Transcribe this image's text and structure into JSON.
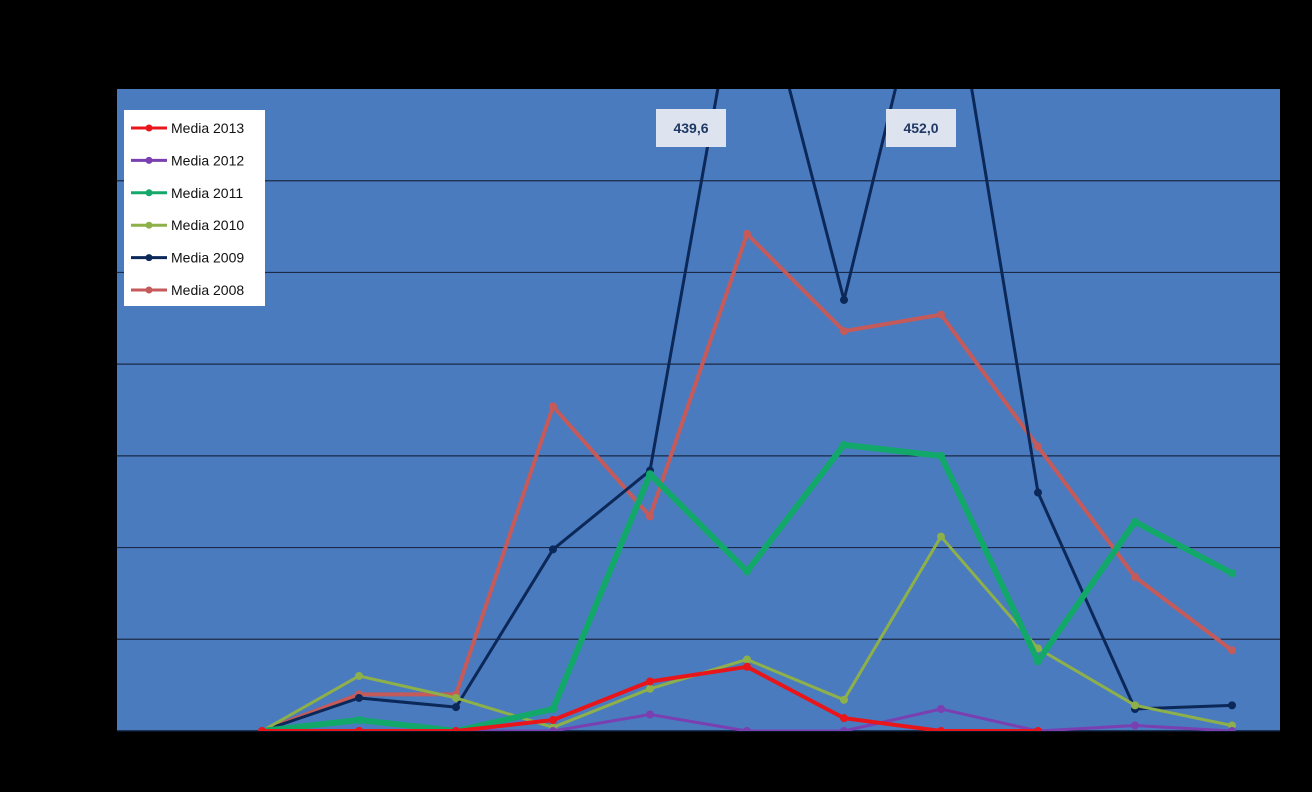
{
  "chart_data": {
    "type": "line",
    "title": "",
    "xlabel": "",
    "ylabel": "",
    "ylim": [
      0,
      350
    ],
    "grid": true,
    "legend_position": "top-left",
    "plot_background": "#4a7bbf",
    "gridline_color": "#1a2a48",
    "x": [
      1,
      2,
      3,
      4,
      5,
      6,
      7,
      8,
      9,
      10,
      11
    ],
    "series": [
      {
        "name": "Media 2013",
        "color": "#e8161b",
        "values": [
          0,
          0,
          0,
          6,
          27,
          35,
          7,
          0,
          0,
          null,
          null
        ]
      },
      {
        "name": "Media 2012",
        "color": "#7a3fb0",
        "values": [
          0,
          0,
          0,
          0,
          9,
          0,
          0,
          12,
          0,
          3,
          0
        ]
      },
      {
        "name": "Media 2011",
        "color": "#12a86a",
        "values": [
          0,
          6,
          0,
          12,
          140,
          87,
          156,
          150,
          38,
          114,
          86
        ]
      },
      {
        "name": "Media 2010",
        "color": "#8db04a",
        "values": [
          0,
          30,
          18,
          2,
          23,
          39,
          17,
          106,
          45,
          14,
          3
        ]
      },
      {
        "name": "Media 2009",
        "color": "#0b2858",
        "values": [
          0,
          18,
          13,
          99,
          142,
          439.6,
          235,
          452.0,
          130,
          12,
          14
        ]
      },
      {
        "name": "Media 2008",
        "color": "#c45a5a",
        "values": [
          0,
          20,
          20,
          177,
          117,
          271,
          218,
          227,
          155,
          84,
          44
        ]
      }
    ],
    "annotations": [
      {
        "label": "439,6",
        "series": "Media 2009",
        "x": 6
      },
      {
        "label": "452,0",
        "series": "Media 2009",
        "x": 8
      }
    ]
  }
}
